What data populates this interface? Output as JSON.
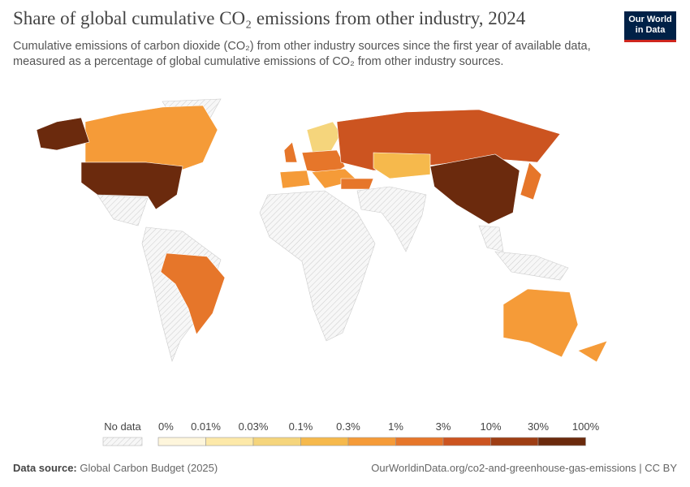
{
  "header": {
    "title": "Share of global cumulative CO₂ emissions from other industry, 2024",
    "subtitle": "Cumulative emissions of carbon dioxide (CO₂) from other industry sources since the first year of available data, measured as a percentage of global cumulative emissions of CO₂ from other industry sources.",
    "logo_line1": "Our World",
    "logo_line2": "in Data"
  },
  "legend": {
    "no_data_label": "No data",
    "labels": [
      "0%",
      "0.01%",
      "0.03%",
      "0.1%",
      "0.3%",
      "1%",
      "3%",
      "10%",
      "30%",
      "100%"
    ],
    "colors": [
      "#fef6dc",
      "#fde9a9",
      "#f5d57c",
      "#f6b94c",
      "#f59b38",
      "#e6762a",
      "#cc5420",
      "#9e3e14",
      "#6b2a0d"
    ]
  },
  "footer": {
    "source_label": "Data source:",
    "source": "Global Carbon Budget (2025)",
    "url": "OurWorldinData.org/co2-and-greenhouse-gas-emissions | CC BY"
  }
}
